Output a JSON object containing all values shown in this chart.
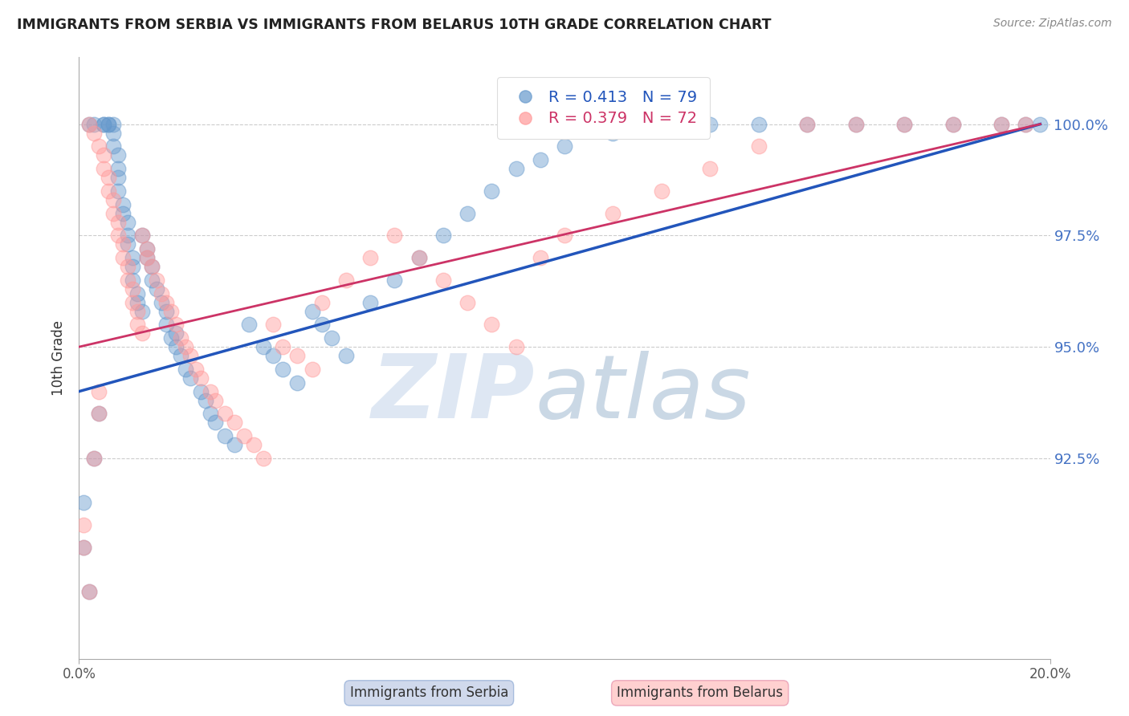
{
  "title": "IMMIGRANTS FROM SERBIA VS IMMIGRANTS FROM BELARUS 10TH GRADE CORRELATION CHART",
  "source": "Source: ZipAtlas.com",
  "ylabel": "10th Grade",
  "yticks": [
    92.5,
    95.0,
    97.5,
    100.0
  ],
  "ytick_labels": [
    "92.5%",
    "95.0%",
    "97.5%",
    "100.0%"
  ],
  "xmin": 0.0,
  "xmax": 0.2,
  "ymin": 88.0,
  "ymax": 101.5,
  "serbia_color": "#6699CC",
  "belarus_color": "#FF9999",
  "serbia_line_color": "#2255BB",
  "belarus_line_color": "#CC3366",
  "serbia_R": 0.413,
  "serbia_N": 79,
  "belarus_R": 0.379,
  "belarus_N": 72,
  "legend_serbia": "Immigrants from Serbia",
  "legend_belarus": "Immigrants from Belarus",
  "watermark_zip": "ZIP",
  "watermark_atlas": "atlas",
  "serbia_x": [
    0.002,
    0.003,
    0.005,
    0.005,
    0.006,
    0.006,
    0.007,
    0.007,
    0.007,
    0.008,
    0.008,
    0.008,
    0.008,
    0.009,
    0.009,
    0.01,
    0.01,
    0.01,
    0.011,
    0.011,
    0.011,
    0.012,
    0.012,
    0.013,
    0.013,
    0.014,
    0.014,
    0.015,
    0.015,
    0.016,
    0.017,
    0.018,
    0.018,
    0.019,
    0.02,
    0.02,
    0.021,
    0.022,
    0.023,
    0.025,
    0.026,
    0.027,
    0.028,
    0.03,
    0.032,
    0.035,
    0.038,
    0.04,
    0.042,
    0.045,
    0.048,
    0.05,
    0.052,
    0.055,
    0.06,
    0.065,
    0.07,
    0.075,
    0.08,
    0.085,
    0.09,
    0.095,
    0.1,
    0.11,
    0.12,
    0.13,
    0.14,
    0.15,
    0.16,
    0.17,
    0.18,
    0.19,
    0.195,
    0.198,
    0.001,
    0.001,
    0.002,
    0.003,
    0.004
  ],
  "serbia_y": [
    100.0,
    100.0,
    100.0,
    100.0,
    100.0,
    100.0,
    100.0,
    99.8,
    99.5,
    99.3,
    99.0,
    98.8,
    98.5,
    98.2,
    98.0,
    97.8,
    97.5,
    97.3,
    97.0,
    96.8,
    96.5,
    96.2,
    96.0,
    95.8,
    97.5,
    97.2,
    97.0,
    96.8,
    96.5,
    96.3,
    96.0,
    95.8,
    95.5,
    95.2,
    95.0,
    95.3,
    94.8,
    94.5,
    94.3,
    94.0,
    93.8,
    93.5,
    93.3,
    93.0,
    92.8,
    95.5,
    95.0,
    94.8,
    94.5,
    94.2,
    95.8,
    95.5,
    95.2,
    94.8,
    96.0,
    96.5,
    97.0,
    97.5,
    98.0,
    98.5,
    99.0,
    99.2,
    99.5,
    99.8,
    100.0,
    100.0,
    100.0,
    100.0,
    100.0,
    100.0,
    100.0,
    100.0,
    100.0,
    100.0,
    91.5,
    90.5,
    89.5,
    92.5,
    93.5
  ],
  "belarus_x": [
    0.002,
    0.003,
    0.004,
    0.005,
    0.005,
    0.006,
    0.006,
    0.007,
    0.007,
    0.008,
    0.008,
    0.009,
    0.009,
    0.01,
    0.01,
    0.011,
    0.011,
    0.012,
    0.012,
    0.013,
    0.013,
    0.014,
    0.014,
    0.015,
    0.016,
    0.017,
    0.018,
    0.019,
    0.02,
    0.021,
    0.022,
    0.023,
    0.024,
    0.025,
    0.027,
    0.028,
    0.03,
    0.032,
    0.034,
    0.036,
    0.038,
    0.04,
    0.042,
    0.045,
    0.048,
    0.05,
    0.055,
    0.06,
    0.065,
    0.07,
    0.075,
    0.08,
    0.085,
    0.09,
    0.095,
    0.1,
    0.11,
    0.12,
    0.13,
    0.14,
    0.15,
    0.16,
    0.17,
    0.18,
    0.19,
    0.195,
    0.001,
    0.001,
    0.002,
    0.003,
    0.004,
    0.004
  ],
  "belarus_y": [
    100.0,
    99.8,
    99.5,
    99.3,
    99.0,
    98.8,
    98.5,
    98.3,
    98.0,
    97.8,
    97.5,
    97.3,
    97.0,
    96.8,
    96.5,
    96.3,
    96.0,
    95.8,
    95.5,
    95.3,
    97.5,
    97.2,
    97.0,
    96.8,
    96.5,
    96.2,
    96.0,
    95.8,
    95.5,
    95.2,
    95.0,
    94.8,
    94.5,
    94.3,
    94.0,
    93.8,
    93.5,
    93.3,
    93.0,
    92.8,
    92.5,
    95.5,
    95.0,
    94.8,
    94.5,
    96.0,
    96.5,
    97.0,
    97.5,
    97.0,
    96.5,
    96.0,
    95.5,
    95.0,
    97.0,
    97.5,
    98.0,
    98.5,
    99.0,
    99.5,
    100.0,
    100.0,
    100.0,
    100.0,
    100.0,
    100.0,
    91.0,
    90.5,
    89.5,
    92.5,
    93.5,
    94.0
  ],
  "serbia_line_x0": 0.0,
  "serbia_line_x1": 0.198,
  "serbia_line_y0": 94.0,
  "serbia_line_y1": 100.0,
  "belarus_line_x0": 0.0,
  "belarus_line_x1": 0.198,
  "belarus_line_y0": 95.0,
  "belarus_line_y1": 100.0
}
